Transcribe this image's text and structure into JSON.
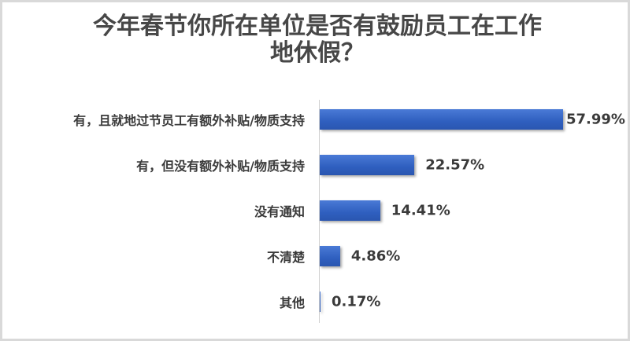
{
  "chart_data": {
    "type": "bar",
    "orientation": "horizontal",
    "title_lines": [
      "今年春节你所在单位是否有鼓励员工在工作",
      "地休假？"
    ],
    "categories": [
      "有，且就地过节员工有额外补贴/物质支持",
      "有，但没有额外补贴/物质支持",
      "没有通知",
      "不清楚",
      "其他"
    ],
    "values": [
      57.99,
      22.57,
      14.41,
      4.86,
      0.17
    ],
    "labels": [
      "57.99%",
      "22.57%",
      "14.41%",
      "4.86%",
      "0.17%"
    ],
    "unit": "%",
    "xlim": [
      0,
      60
    ],
    "grid": false,
    "legend": "none",
    "bar_color": "#3363c4"
  }
}
